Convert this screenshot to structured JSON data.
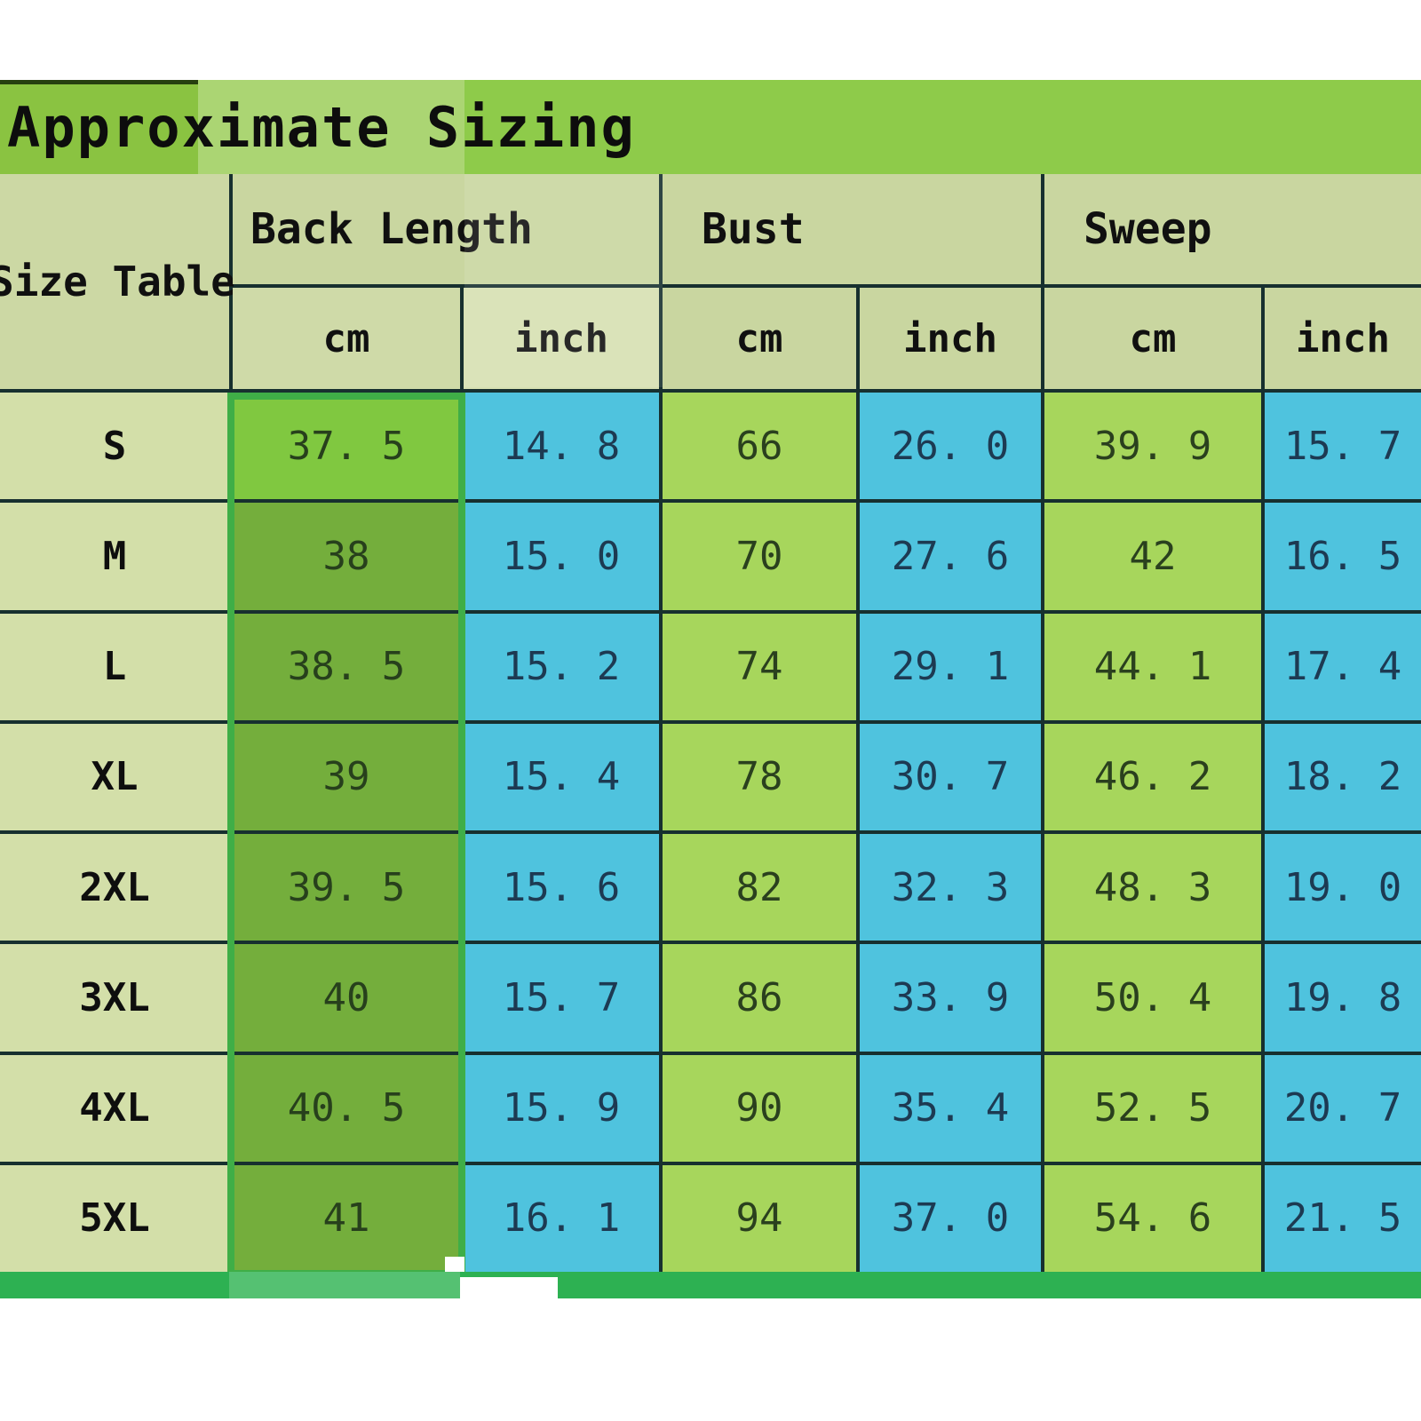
{
  "title": "Approximate Sizing",
  "table": {
    "corner_label": "Size Table",
    "groups": [
      {
        "label": "Back Length",
        "units": [
          "cm",
          "inch"
        ]
      },
      {
        "label": "Bust",
        "units": [
          "cm",
          "inch"
        ]
      },
      {
        "label": "Sweep",
        "units": [
          "cm",
          "inch"
        ]
      }
    ],
    "rows": [
      {
        "size": "S",
        "back_length_cm": "37. 5",
        "back_length_inch": "14. 8",
        "bust_cm": "66",
        "bust_inch": "26. 0",
        "sweep_cm": "39. 9",
        "sweep_inch": "15. 7"
      },
      {
        "size": "M",
        "back_length_cm": "38",
        "back_length_inch": "15. 0",
        "bust_cm": "70",
        "bust_inch": "27. 6",
        "sweep_cm": "42",
        "sweep_inch": "16. 5"
      },
      {
        "size": "L",
        "back_length_cm": "38. 5",
        "back_length_inch": "15. 2",
        "bust_cm": "74",
        "bust_inch": "29. 1",
        "sweep_cm": "44. 1",
        "sweep_inch": "17. 4"
      },
      {
        "size": "XL",
        "back_length_cm": "39",
        "back_length_inch": "15. 4",
        "bust_cm": "78",
        "bust_inch": "30. 7",
        "sweep_cm": "46. 2",
        "sweep_inch": "18. 2"
      },
      {
        "size": "2XL",
        "back_length_cm": "39. 5",
        "back_length_inch": "15. 6",
        "bust_cm": "82",
        "bust_inch": "32. 3",
        "sweep_cm": "48. 3",
        "sweep_inch": "19. 0"
      },
      {
        "size": "3XL",
        "back_length_cm": "40",
        "back_length_inch": "15. 7",
        "bust_cm": "86",
        "bust_inch": "33. 9",
        "sweep_cm": "50. 4",
        "sweep_inch": "19. 8"
      },
      {
        "size": "4XL",
        "back_length_cm": "40. 5",
        "back_length_inch": "15. 9",
        "bust_cm": "90",
        "bust_inch": "35. 4",
        "sweep_cm": "52. 5",
        "sweep_inch": "20. 7"
      },
      {
        "size": "5XL",
        "back_length_cm": "41",
        "back_length_inch": "16. 1",
        "bust_cm": "94",
        "bust_inch": "37. 0",
        "sweep_cm": "54. 6",
        "sweep_inch": "21. 5"
      }
    ]
  },
  "chart_data": {
    "type": "table",
    "title": "Approximate Sizing",
    "columns": [
      "Size",
      "Back Length cm",
      "Back Length inch",
      "Bust cm",
      "Bust inch",
      "Sweep cm",
      "Sweep inch"
    ],
    "rows": [
      [
        "S",
        37.5,
        14.8,
        66,
        26.0,
        39.9,
        15.7
      ],
      [
        "M",
        38,
        15.0,
        70,
        27.6,
        42,
        16.5
      ],
      [
        "L",
        38.5,
        15.2,
        74,
        29.1,
        44.1,
        17.4
      ],
      [
        "XL",
        39,
        15.4,
        78,
        30.7,
        46.2,
        18.2
      ],
      [
        "2XL",
        39.5,
        15.6,
        82,
        32.3,
        48.3,
        19.0
      ],
      [
        "3XL",
        40,
        15.7,
        86,
        33.9,
        50.4,
        19.8
      ],
      [
        "4XL",
        40.5,
        15.9,
        90,
        35.4,
        52.5,
        20.7
      ],
      [
        "5XL",
        41,
        16.1,
        94,
        37.0,
        54.6,
        21.5
      ]
    ]
  },
  "colors": {
    "title_bar_green": "#8ecb4a",
    "title_bar_green_light": "#abd573",
    "title_bar_green_dark": "#8ac341",
    "header_cell": "#c9d6a0",
    "size_label_cell": "#d3dfa9",
    "back_length_cm_selected_first_row": "#80c840",
    "back_length_cm_selected": "#74ae3c",
    "cm_value_cell_green": "#a7d65c",
    "inch_value_cell_blue": "#4fc3de",
    "grid_line": "#17302f",
    "selection_border_green": "#3fae47",
    "bottom_strip_green": "#2db152",
    "bottom_strip_light_green": "#55c172"
  }
}
